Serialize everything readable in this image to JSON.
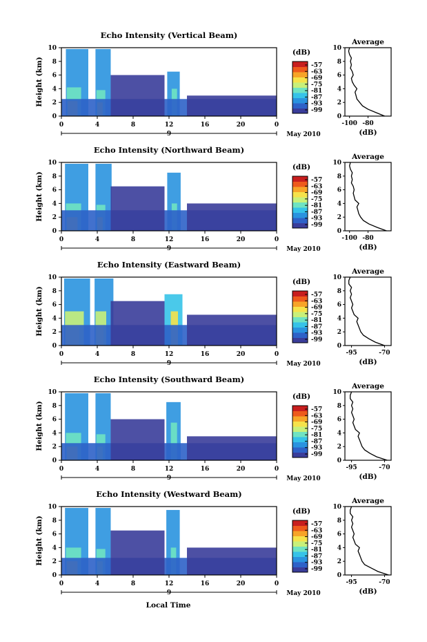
{
  "figure": {
    "footer_xlabel": "Local Time"
  },
  "chart_data": [
    {
      "type": "heatmap",
      "title": "Echo Intensity (Vertical Beam)",
      "ylabel": "Height (km)",
      "yticks": [
        "0",
        "2",
        "4",
        "6",
        "8",
        "10"
      ],
      "ylim": [
        0,
        10
      ],
      "xticks": [
        "0",
        "4",
        "8",
        "12",
        "16",
        "20",
        "0"
      ],
      "xlim": [
        0,
        24
      ],
      "day_label": "9",
      "month_label": "May 2010",
      "colorbar": {
        "unit": "(dB)",
        "ticks": [
          "-57",
          "-63",
          "-69",
          "-75",
          "-81",
          "-87",
          "-93",
          "-99"
        ]
      },
      "cells": [
        {
          "t0": 0.5,
          "t1": 3.0,
          "top": 9.8,
          "level": 2
        },
        {
          "t0": 0.6,
          "t1": 2.2,
          "top": 4.2,
          "level": 4
        },
        {
          "t0": 0.7,
          "t1": 1.8,
          "top": 2.2,
          "level": 6
        },
        {
          "t0": 3.8,
          "t1": 5.5,
          "top": 9.8,
          "level": 2
        },
        {
          "t0": 3.9,
          "t1": 4.9,
          "top": 3.8,
          "level": 4
        },
        {
          "t0": 4.0,
          "t1": 4.6,
          "top": 2.0,
          "level": 6
        },
        {
          "t0": 11.8,
          "t1": 13.2,
          "top": 6.5,
          "level": 2
        },
        {
          "t0": 12.3,
          "t1": 12.9,
          "top": 4.0,
          "level": 4
        },
        {
          "t0": 0.0,
          "t1": 24.0,
          "top": 2.5,
          "level": 1
        },
        {
          "t0": 5.5,
          "t1": 11.5,
          "top": 6.0,
          "level": 0
        },
        {
          "t0": 14.0,
          "t1": 24.0,
          "top": 3.0,
          "level": 0
        }
      ],
      "profile": {
        "xlabel": "(dB)",
        "title": "Average",
        "xticks": [
          "-100",
          "-80"
        ],
        "xlim": [
          -105,
          -55
        ],
        "heights": [
          0,
          0.5,
          1,
          1.5,
          2,
          2.5,
          3,
          3.5,
          4,
          4.5,
          5,
          5.5,
          6,
          6.5,
          7,
          7.5,
          8,
          8.5,
          9,
          9.5,
          10
        ],
        "values": [
          -62,
          -71,
          -80,
          -86,
          -89,
          -92,
          -93,
          -94,
          -92,
          -95,
          -97,
          -98,
          -96,
          -97,
          -99,
          -98,
          -99,
          -98,
          -100,
          -101,
          -100
        ]
      }
    },
    {
      "type": "heatmap",
      "title": "Echo Intensity (Northward Beam)",
      "ylabel": "Height (km)",
      "yticks": [
        "0",
        "2",
        "4",
        "6",
        "8",
        "10"
      ],
      "ylim": [
        0,
        10
      ],
      "xticks": [
        "0",
        "4",
        "8",
        "12",
        "16",
        "20",
        "0"
      ],
      "xlim": [
        0,
        24
      ],
      "day_label": "9",
      "month_label": "May 2010",
      "colorbar": {
        "unit": "(dB)",
        "ticks": [
          "-57",
          "-63",
          "-69",
          "-75",
          "-81",
          "-87",
          "-93",
          "-99"
        ]
      },
      "cells": [
        {
          "t0": 0.4,
          "t1": 3.0,
          "top": 9.8,
          "level": 2
        },
        {
          "t0": 0.5,
          "t1": 2.2,
          "top": 4.0,
          "level": 4
        },
        {
          "t0": 0.6,
          "t1": 1.8,
          "top": 2.0,
          "level": 6
        },
        {
          "t0": 3.8,
          "t1": 5.6,
          "top": 9.8,
          "level": 2
        },
        {
          "t0": 3.9,
          "t1": 4.9,
          "top": 3.8,
          "level": 4
        },
        {
          "t0": 4.0,
          "t1": 4.6,
          "top": 2.0,
          "level": 6
        },
        {
          "t0": 11.8,
          "t1": 13.3,
          "top": 8.5,
          "level": 2
        },
        {
          "t0": 12.3,
          "t1": 12.9,
          "top": 4.0,
          "level": 4
        },
        {
          "t0": 0.0,
          "t1": 24.0,
          "top": 3.0,
          "level": 1
        },
        {
          "t0": 5.5,
          "t1": 11.5,
          "top": 6.5,
          "level": 0
        },
        {
          "t0": 14.0,
          "t1": 24.0,
          "top": 4.0,
          "level": 0
        }
      ],
      "profile": {
        "xlabel": "(dB)",
        "title": "Average",
        "xticks": [
          "-100",
          "-80"
        ],
        "xlim": [
          -105,
          -55
        ],
        "heights": [
          0,
          0.5,
          1,
          1.5,
          2,
          2.5,
          3,
          3.5,
          4,
          4.5,
          5,
          5.5,
          6,
          6.5,
          7,
          7.5,
          8,
          8.5,
          9,
          9.5,
          10
        ],
        "values": [
          -60,
          -70,
          -79,
          -85,
          -88,
          -90,
          -91,
          -92,
          -90,
          -94,
          -95,
          -96,
          -95,
          -96,
          -98,
          -97,
          -98,
          -97,
          -99,
          -100,
          -99
        ]
      }
    },
    {
      "type": "heatmap",
      "title": "Echo Intensity (Eastward Beam)",
      "ylabel": "Height (km)",
      "yticks": [
        "0",
        "2",
        "4",
        "6",
        "8",
        "10"
      ],
      "ylim": [
        0,
        10
      ],
      "xticks": [
        "0",
        "4",
        "8",
        "12",
        "16",
        "20",
        "0"
      ],
      "xlim": [
        0,
        24
      ],
      "day_label": "9",
      "month_label": "May 2010",
      "colorbar": {
        "unit": "(dB)",
        "ticks": [
          "-57",
          "-63",
          "-69",
          "-75",
          "-81",
          "-87",
          "-93",
          "-99"
        ]
      },
      "cells": [
        {
          "t0": 0.3,
          "t1": 3.2,
          "top": 9.8,
          "level": 2
        },
        {
          "t0": 0.4,
          "t1": 2.5,
          "top": 5.0,
          "level": 5
        },
        {
          "t0": 0.5,
          "t1": 2.0,
          "top": 3.0,
          "level": 6
        },
        {
          "t0": 3.7,
          "t1": 5.8,
          "top": 9.8,
          "level": 2
        },
        {
          "t0": 3.8,
          "t1": 5.0,
          "top": 5.0,
          "level": 5
        },
        {
          "t0": 3.9,
          "t1": 4.7,
          "top": 3.0,
          "level": 6
        },
        {
          "t0": 11.5,
          "t1": 13.5,
          "top": 7.5,
          "level": 3
        },
        {
          "t0": 12.2,
          "t1": 13.0,
          "top": 5.0,
          "level": 6
        },
        {
          "t0": 0.0,
          "t1": 24.0,
          "top": 3.0,
          "level": 1
        },
        {
          "t0": 5.5,
          "t1": 11.5,
          "top": 6.5,
          "level": 0
        },
        {
          "t0": 14.0,
          "t1": 24.0,
          "top": 4.5,
          "level": 0
        }
      ],
      "profile": {
        "xlabel": "(dB)",
        "title": "Average",
        "xticks": [
          "-95",
          "-70"
        ],
        "xlim": [
          -100,
          -65
        ],
        "heights": [
          0,
          0.5,
          1,
          1.5,
          2,
          2.5,
          3,
          3.5,
          4,
          4.5,
          5,
          5.5,
          6,
          6.5,
          7,
          7.5,
          8,
          8.5,
          9,
          9.5,
          10
        ],
        "values": [
          -70,
          -77,
          -82,
          -86,
          -88,
          -89,
          -90,
          -91,
          -90,
          -93,
          -94,
          -95,
          -94,
          -95,
          -96,
          -95,
          -96,
          -95,
          -97,
          -97,
          -96
        ]
      }
    },
    {
      "type": "heatmap",
      "title": "Echo Intensity (Southward Beam)",
      "ylabel": "Height (km)",
      "yticks": [
        "0",
        "2",
        "4",
        "6",
        "8",
        "10"
      ],
      "ylim": [
        0,
        10
      ],
      "xticks": [
        "0",
        "4",
        "8",
        "12",
        "16",
        "20",
        "0"
      ],
      "xlim": [
        0,
        24
      ],
      "day_label": "9",
      "month_label": "May 2010",
      "colorbar": {
        "unit": "(dB)",
        "ticks": [
          "-57",
          "-63",
          "-69",
          "-75",
          "-81",
          "-87",
          "-93",
          "-99"
        ]
      },
      "cells": [
        {
          "t0": 0.4,
          "t1": 3.0,
          "top": 9.8,
          "level": 2
        },
        {
          "t0": 0.5,
          "t1": 2.2,
          "top": 4.0,
          "level": 4
        },
        {
          "t0": 0.6,
          "t1": 1.8,
          "top": 2.0,
          "level": 6
        },
        {
          "t0": 3.8,
          "t1": 5.5,
          "top": 9.8,
          "level": 2
        },
        {
          "t0": 3.9,
          "t1": 4.9,
          "top": 3.8,
          "level": 4
        },
        {
          "t0": 4.0,
          "t1": 4.6,
          "top": 2.0,
          "level": 5
        },
        {
          "t0": 11.7,
          "t1": 13.3,
          "top": 8.5,
          "level": 2
        },
        {
          "t0": 12.2,
          "t1": 12.9,
          "top": 5.5,
          "level": 4
        },
        {
          "t0": 0.0,
          "t1": 24.0,
          "top": 2.5,
          "level": 1
        },
        {
          "t0": 5.5,
          "t1": 11.5,
          "top": 6.0,
          "level": 0
        },
        {
          "t0": 14.0,
          "t1": 24.0,
          "top": 3.5,
          "level": 0
        }
      ],
      "profile": {
        "xlabel": "(dB)",
        "title": "Average",
        "xticks": [
          "-95",
          "-70"
        ],
        "xlim": [
          -100,
          -65
        ],
        "heights": [
          0,
          0.5,
          1,
          1.5,
          2,
          2.5,
          3,
          3.5,
          4,
          4.5,
          5,
          5.5,
          6,
          6.5,
          7,
          7.5,
          8,
          8.5,
          9,
          9.5,
          10
        ],
        "values": [
          -68,
          -76,
          -81,
          -85,
          -87,
          -88,
          -89,
          -90,
          -89,
          -92,
          -93,
          -94,
          -93,
          -94,
          -95,
          -94,
          -95,
          -94,
          -96,
          -96,
          -95
        ]
      }
    },
    {
      "type": "heatmap",
      "title": "Echo Intensity (Westward Beam)",
      "ylabel": "Height (km)",
      "yticks": [
        "0",
        "2",
        "4",
        "6",
        "8",
        "10"
      ],
      "ylim": [
        0,
        10
      ],
      "xticks": [
        "0",
        "4",
        "8",
        "12",
        "16",
        "20",
        "0"
      ],
      "xlim": [
        0,
        24
      ],
      "day_label": "9",
      "month_label": "May 2010",
      "colorbar": {
        "unit": "(dB)",
        "ticks": [
          "-57",
          "-63",
          "-69",
          "-75",
          "-81",
          "-87",
          "-93",
          "-99"
        ]
      },
      "cells": [
        {
          "t0": 0.4,
          "t1": 3.0,
          "top": 9.8,
          "level": 2
        },
        {
          "t0": 0.5,
          "t1": 2.2,
          "top": 4.0,
          "level": 4
        },
        {
          "t0": 0.6,
          "t1": 1.8,
          "top": 2.0,
          "level": 6
        },
        {
          "t0": 3.8,
          "t1": 5.5,
          "top": 9.8,
          "level": 2
        },
        {
          "t0": 3.9,
          "t1": 4.9,
          "top": 3.8,
          "level": 4
        },
        {
          "t0": 4.0,
          "t1": 4.6,
          "top": 2.0,
          "level": 5
        },
        {
          "t0": 11.7,
          "t1": 13.2,
          "top": 9.5,
          "level": 2
        },
        {
          "t0": 12.2,
          "t1": 12.8,
          "top": 4.0,
          "level": 4
        },
        {
          "t0": 0.0,
          "t1": 24.0,
          "top": 2.5,
          "level": 1
        },
        {
          "t0": 5.5,
          "t1": 11.5,
          "top": 6.5,
          "level": 0
        },
        {
          "t0": 14.0,
          "t1": 24.0,
          "top": 4.0,
          "level": 0
        }
      ],
      "profile": {
        "xlabel": "(dB)",
        "title": "Average",
        "xticks": [
          "-95",
          "-70"
        ],
        "xlim": [
          -100,
          -65
        ],
        "heights": [
          0,
          0.5,
          1,
          1.5,
          2,
          2.5,
          3,
          3.5,
          4,
          4.5,
          5,
          5.5,
          6,
          6.5,
          7,
          7.5,
          8,
          8.5,
          9,
          9.5,
          10
        ],
        "values": [
          -67,
          -75,
          -80,
          -85,
          -87,
          -88,
          -89,
          -90,
          -89,
          -92,
          -93,
          -94,
          -93,
          -94,
          -95,
          -94,
          -95,
          -94,
          -96,
          -96,
          -95
        ]
      }
    }
  ],
  "colormap": [
    "#3a3d9a",
    "#2e62c8",
    "#2a93df",
    "#36c3e8",
    "#6fe3c2",
    "#c8f07a",
    "#f6e24a",
    "#f7a428",
    "#ee5a1c",
    "#c81e1e"
  ]
}
